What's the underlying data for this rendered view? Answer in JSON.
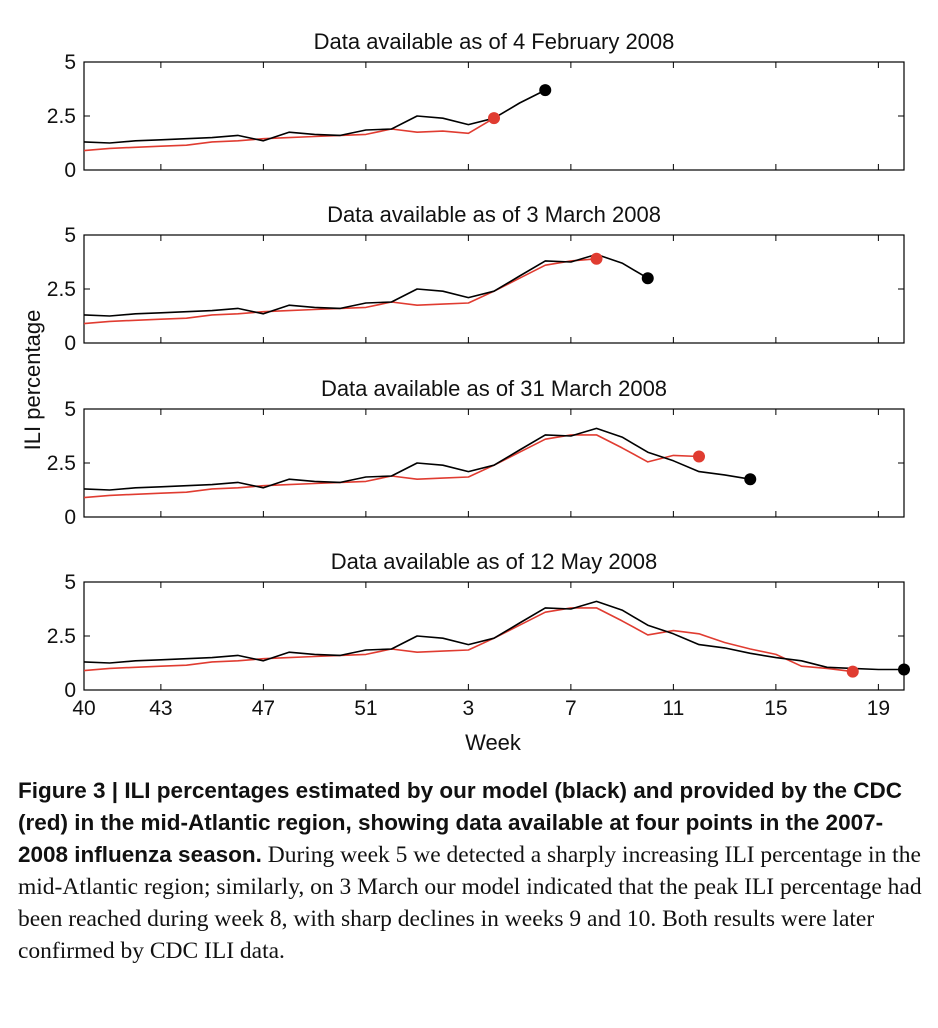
{
  "chart_data": {
    "type": "line",
    "ylabel": "ILI percentage",
    "xlabel": "Week",
    "x_tick_labels": [
      "40",
      "43",
      "47",
      "51",
      "3",
      "7",
      "11",
      "15",
      "19"
    ],
    "y_tick_labels": [
      "0",
      "2.5",
      "5"
    ],
    "ylim": [
      0,
      5
    ],
    "colors": {
      "model": "#000000",
      "cdc": "#e03c31"
    },
    "panels": [
      {
        "title": "Data available as of 4 February 2008",
        "series": [
          {
            "key": "model",
            "x": [
              40,
              41,
              42,
              43,
              44,
              45,
              46,
              47,
              48,
              49,
              50,
              51,
              52,
              1,
              2,
              3,
              4,
              5,
              6
            ],
            "y": [
              1.3,
              1.25,
              1.35,
              1.4,
              1.45,
              1.5,
              1.6,
              1.35,
              1.75,
              1.65,
              1.6,
              1.85,
              1.9,
              2.5,
              2.4,
              2.1,
              2.4,
              3.1,
              3.7
            ]
          },
          {
            "key": "cdc",
            "x": [
              40,
              41,
              42,
              43,
              44,
              45,
              46,
              47,
              48,
              49,
              50,
              51,
              52,
              1,
              2,
              3,
              4
            ],
            "y": [
              0.9,
              1.0,
              1.05,
              1.1,
              1.15,
              1.3,
              1.35,
              1.45,
              1.5,
              1.55,
              1.6,
              1.65,
              1.9,
              1.75,
              1.8,
              1.7,
              2.4
            ]
          }
        ]
      },
      {
        "title": "Data available as of 3 March 2008",
        "series": [
          {
            "key": "model",
            "x": [
              40,
              41,
              42,
              43,
              44,
              45,
              46,
              47,
              48,
              49,
              50,
              51,
              52,
              1,
              2,
              3,
              4,
              5,
              6,
              7,
              8,
              9,
              10
            ],
            "y": [
              1.3,
              1.25,
              1.35,
              1.4,
              1.45,
              1.5,
              1.6,
              1.35,
              1.75,
              1.65,
              1.6,
              1.85,
              1.9,
              2.5,
              2.4,
              2.1,
              2.4,
              3.1,
              3.8,
              3.75,
              4.1,
              3.7,
              3.0
            ]
          },
          {
            "key": "cdc",
            "x": [
              40,
              41,
              42,
              43,
              44,
              45,
              46,
              47,
              48,
              49,
              50,
              51,
              52,
              1,
              2,
              3,
              4,
              5,
              6,
              7,
              8
            ],
            "y": [
              0.9,
              1.0,
              1.05,
              1.1,
              1.15,
              1.3,
              1.35,
              1.45,
              1.5,
              1.55,
              1.6,
              1.65,
              1.9,
              1.75,
              1.8,
              1.85,
              2.4,
              3.0,
              3.6,
              3.8,
              3.9
            ]
          }
        ]
      },
      {
        "title": "Data available as of 31 March 2008",
        "series": [
          {
            "key": "model",
            "x": [
              40,
              41,
              42,
              43,
              44,
              45,
              46,
              47,
              48,
              49,
              50,
              51,
              52,
              1,
              2,
              3,
              4,
              5,
              6,
              7,
              8,
              9,
              10,
              11,
              12,
              13,
              14
            ],
            "y": [
              1.3,
              1.25,
              1.35,
              1.4,
              1.45,
              1.5,
              1.6,
              1.35,
              1.75,
              1.65,
              1.6,
              1.85,
              1.9,
              2.5,
              2.4,
              2.1,
              2.4,
              3.1,
              3.8,
              3.75,
              4.1,
              3.7,
              3.0,
              2.6,
              2.1,
              1.95,
              1.75
            ]
          },
          {
            "key": "cdc",
            "x": [
              40,
              41,
              42,
              43,
              44,
              45,
              46,
              47,
              48,
              49,
              50,
              51,
              52,
              1,
              2,
              3,
              4,
              5,
              6,
              7,
              8,
              9,
              10,
              11,
              12
            ],
            "y": [
              0.9,
              1.0,
              1.05,
              1.1,
              1.15,
              1.3,
              1.35,
              1.45,
              1.5,
              1.55,
              1.6,
              1.65,
              1.9,
              1.75,
              1.8,
              1.85,
              2.4,
              3.0,
              3.6,
              3.8,
              3.8,
              3.2,
              2.55,
              2.85,
              2.8
            ]
          }
        ]
      },
      {
        "title": "Data available as of 12 May 2008",
        "series": [
          {
            "key": "model",
            "x": [
              40,
              41,
              42,
              43,
              44,
              45,
              46,
              47,
              48,
              49,
              50,
              51,
              52,
              1,
              2,
              3,
              4,
              5,
              6,
              7,
              8,
              9,
              10,
              11,
              12,
              13,
              14,
              15,
              16,
              17,
              18,
              19,
              20
            ],
            "y": [
              1.3,
              1.25,
              1.35,
              1.4,
              1.45,
              1.5,
              1.6,
              1.35,
              1.75,
              1.65,
              1.6,
              1.85,
              1.9,
              2.5,
              2.4,
              2.1,
              2.4,
              3.1,
              3.8,
              3.75,
              4.1,
              3.7,
              3.0,
              2.6,
              2.1,
              1.95,
              1.7,
              1.5,
              1.35,
              1.05,
              1.0,
              0.95,
              0.95
            ]
          },
          {
            "key": "cdc",
            "x": [
              40,
              41,
              42,
              43,
              44,
              45,
              46,
              47,
              48,
              49,
              50,
              51,
              52,
              1,
              2,
              3,
              4,
              5,
              6,
              7,
              8,
              9,
              10,
              11,
              12,
              13,
              14,
              15,
              16,
              17,
              18
            ],
            "y": [
              0.9,
              1.0,
              1.05,
              1.1,
              1.15,
              1.3,
              1.35,
              1.45,
              1.5,
              1.55,
              1.6,
              1.65,
              1.9,
              1.75,
              1.8,
              1.85,
              2.4,
              3.0,
              3.6,
              3.8,
              3.8,
              3.2,
              2.55,
              2.75,
              2.6,
              2.2,
              1.9,
              1.65,
              1.1,
              1.0,
              0.85
            ]
          }
        ]
      }
    ]
  },
  "caption": {
    "lead": "Figure 3 | ILI percentages estimated by our model (black) and provided by the CDC (red) in the mid-Atlantic region, showing data available at four points in the 2007-2008 influenza season.",
    "body": "During week 5 we detected a sharply increasing ILI percentage in the mid-Atlantic region; similarly, on 3 March our model indicated that the peak ILI percentage had been reached during week 8, with sharp declines in weeks 9 and 10. Both results were later confirmed by CDC ILI data."
  }
}
